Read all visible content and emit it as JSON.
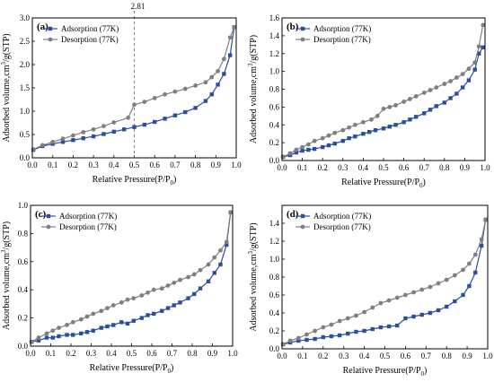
{
  "colors": {
    "adsorption": "#2a4fa0",
    "desorption": "#7f7f7f"
  },
  "chart_data": [
    {
      "type": "line",
      "panel_label": "(a)",
      "xlabel": "Relative Pressure(P/P",
      "xlabel_sub": "0",
      "xlabel_end": ")",
      "ylabel": "Adsorbed volume,cm",
      "ylabel_sup": "3",
      "ylabel_end": "/g(STP)",
      "xlim": [
        0.0,
        1.0
      ],
      "ylim": [
        0.0,
        3.0
      ],
      "xticks": [
        "0.0",
        "0.1",
        "0.2",
        "0.3",
        "0.4",
        "0.5",
        "0.6",
        "0.7",
        "0.8",
        "0.9",
        "1.0"
      ],
      "yticks": [
        "0.0",
        "0.5",
        "1.0",
        "1.5",
        "2.0",
        "2.5",
        "3.0"
      ],
      "legend_position": "top-left",
      "reference_line": {
        "x": 0.5,
        "label": "2.81"
      },
      "series": [
        {
          "name": "Adsorption (77K)",
          "marker": "square",
          "color_key": "adsorption",
          "x": [
            0.005,
            0.05,
            0.1,
            0.15,
            0.2,
            0.25,
            0.3,
            0.35,
            0.4,
            0.45,
            0.5,
            0.55,
            0.6,
            0.65,
            0.7,
            0.75,
            0.8,
            0.85,
            0.88,
            0.91,
            0.94,
            0.97,
            0.99
          ],
          "y": [
            0.17,
            0.25,
            0.3,
            0.34,
            0.38,
            0.42,
            0.46,
            0.51,
            0.56,
            0.61,
            0.66,
            0.71,
            0.77,
            0.84,
            0.91,
            0.98,
            1.07,
            1.22,
            1.36,
            1.57,
            1.8,
            2.2,
            2.8
          ]
        },
        {
          "name": "Desorption (77K)",
          "marker": "circle",
          "color_key": "desorption",
          "x": [
            0.99,
            0.97,
            0.94,
            0.91,
            0.88,
            0.85,
            0.8,
            0.75,
            0.7,
            0.65,
            0.6,
            0.55,
            0.5,
            0.47,
            0.4,
            0.35,
            0.3,
            0.25,
            0.2,
            0.15,
            0.1,
            0.05,
            0.005
          ],
          "y": [
            2.8,
            2.58,
            2.12,
            1.86,
            1.73,
            1.62,
            1.55,
            1.48,
            1.42,
            1.36,
            1.28,
            1.2,
            1.14,
            0.86,
            0.76,
            0.68,
            0.61,
            0.55,
            0.48,
            0.41,
            0.34,
            0.27,
            0.18
          ]
        }
      ]
    },
    {
      "type": "line",
      "panel_label": "(b)",
      "xlabel": "Relative Pressure(P/P",
      "xlabel_sub": "0",
      "xlabel_end": ")",
      "ylabel": "Adsorbed volume,cm",
      "ylabel_sup": "3",
      "ylabel_end": "/g(STP)",
      "xlim": [
        0.0,
        1.0
      ],
      "ylim": [
        0.0,
        1.6
      ],
      "xticks": [
        "0.0",
        "0.1",
        "0.2",
        "0.3",
        "0.4",
        "0.5",
        "0.6",
        "0.7",
        "0.8",
        "0.9",
        "1.0"
      ],
      "yticks": [
        "0.0",
        "0.2",
        "0.4",
        "0.6",
        "0.8",
        "1.0",
        "1.2",
        "1.4",
        "1.6"
      ],
      "legend_position": "top-left",
      "series": [
        {
          "name": "Adsorption (77K)",
          "marker": "square",
          "color_key": "adsorption",
          "x": [
            0.005,
            0.04,
            0.07,
            0.1,
            0.13,
            0.16,
            0.2,
            0.23,
            0.26,
            0.3,
            0.33,
            0.36,
            0.4,
            0.43,
            0.46,
            0.5,
            0.53,
            0.56,
            0.6,
            0.63,
            0.66,
            0.7,
            0.73,
            0.76,
            0.8,
            0.83,
            0.86,
            0.89,
            0.92,
            0.95,
            0.97,
            0.99
          ],
          "y": [
            0.04,
            0.06,
            0.09,
            0.11,
            0.12,
            0.13,
            0.15,
            0.17,
            0.19,
            0.22,
            0.25,
            0.27,
            0.3,
            0.32,
            0.34,
            0.36,
            0.38,
            0.4,
            0.43,
            0.46,
            0.49,
            0.53,
            0.57,
            0.61,
            0.65,
            0.7,
            0.75,
            0.82,
            0.9,
            1.02,
            1.2,
            1.27
          ]
        },
        {
          "name": "Desorption (77K)",
          "marker": "circle",
          "color_key": "desorption",
          "x": [
            0.99,
            0.97,
            0.95,
            0.92,
            0.89,
            0.86,
            0.83,
            0.8,
            0.76,
            0.73,
            0.7,
            0.66,
            0.63,
            0.6,
            0.56,
            0.53,
            0.5,
            0.47,
            0.44,
            0.4,
            0.36,
            0.33,
            0.3,
            0.26,
            0.23,
            0.2,
            0.16,
            0.13,
            0.1,
            0.07,
            0.04,
            0.005
          ],
          "y": [
            1.52,
            1.28,
            1.1,
            1.03,
            0.97,
            0.93,
            0.89,
            0.86,
            0.82,
            0.79,
            0.76,
            0.72,
            0.69,
            0.66,
            0.62,
            0.6,
            0.58,
            0.5,
            0.46,
            0.43,
            0.4,
            0.37,
            0.34,
            0.31,
            0.28,
            0.25,
            0.22,
            0.18,
            0.15,
            0.12,
            0.08,
            0.04
          ]
        }
      ]
    },
    {
      "type": "line",
      "panel_label": "(c)",
      "xlabel": "Relative Pressure(P/P",
      "xlabel_sub": "0",
      "xlabel_end": ")",
      "ylabel": "Adsorbed volume,cm",
      "ylabel_sup": "3",
      "ylabel_end": "/g(STP)",
      "xlim": [
        0.0,
        1.0
      ],
      "ylim": [
        0.0,
        1.0
      ],
      "xticks": [
        "0.0",
        "0.1",
        "0.2",
        "0.3",
        "0.4",
        "0.5",
        "0.6",
        "0.7",
        "0.8",
        "0.9",
        "1.0"
      ],
      "yticks": [
        "0.0",
        "0.2",
        "0.4",
        "0.6",
        "0.8",
        "1.0"
      ],
      "legend_position": "top-left",
      "series": [
        {
          "name": "Adsorption (77K)",
          "marker": "square",
          "color_key": "adsorption",
          "x": [
            0.005,
            0.04,
            0.08,
            0.11,
            0.14,
            0.18,
            0.21,
            0.25,
            0.28,
            0.31,
            0.35,
            0.38,
            0.41,
            0.45,
            0.48,
            0.51,
            0.55,
            0.58,
            0.61,
            0.65,
            0.68,
            0.71,
            0.74,
            0.78,
            0.81,
            0.84,
            0.88,
            0.91,
            0.94,
            0.97,
            0.99
          ],
          "y": [
            0.03,
            0.04,
            0.06,
            0.06,
            0.07,
            0.08,
            0.08,
            0.09,
            0.1,
            0.11,
            0.13,
            0.14,
            0.15,
            0.17,
            0.16,
            0.18,
            0.2,
            0.22,
            0.23,
            0.25,
            0.27,
            0.29,
            0.31,
            0.34,
            0.37,
            0.41,
            0.46,
            0.52,
            0.58,
            0.72,
            0.95
          ]
        },
        {
          "name": "Desorption (77K)",
          "marker": "circle",
          "color_key": "desorption",
          "x": [
            0.99,
            0.97,
            0.94,
            0.91,
            0.88,
            0.84,
            0.81,
            0.78,
            0.74,
            0.71,
            0.68,
            0.65,
            0.61,
            0.58,
            0.55,
            0.51,
            0.48,
            0.45,
            0.41,
            0.38,
            0.35,
            0.31,
            0.28,
            0.25,
            0.21,
            0.18,
            0.14,
            0.11,
            0.08,
            0.04,
            0.005
          ],
          "y": [
            0.95,
            0.74,
            0.68,
            0.63,
            0.58,
            0.54,
            0.51,
            0.49,
            0.47,
            0.45,
            0.43,
            0.41,
            0.4,
            0.38,
            0.36,
            0.34,
            0.33,
            0.31,
            0.29,
            0.27,
            0.25,
            0.23,
            0.21,
            0.19,
            0.17,
            0.15,
            0.13,
            0.11,
            0.09,
            0.06,
            0.03
          ]
        }
      ]
    },
    {
      "type": "line",
      "panel_label": "(d)",
      "xlabel": "Relative Pressure(P/P",
      "xlabel_sub": "0",
      "xlabel_end": ")",
      "ylabel": "Adsorbed volume,cm",
      "ylabel_sup": "3",
      "ylabel_end": "/g(STP)",
      "xlim": [
        0.0,
        1.0
      ],
      "ylim": [
        0.0,
        1.6
      ],
      "xticks": [
        "0.0",
        "0.1",
        "0.2",
        "0.3",
        "0.4",
        "0.5",
        "0.6",
        "0.7",
        "0.8",
        "0.9",
        "1.0"
      ],
      "yticks": [
        "0.0",
        "0.2",
        "0.4",
        "0.6",
        "0.8",
        "1.0",
        "1.2",
        "1.4"
      ],
      "legend_position": "top-left",
      "series": [
        {
          "name": "Adsorption (77K)",
          "marker": "square",
          "color_key": "adsorption",
          "x": [
            0.005,
            0.04,
            0.08,
            0.12,
            0.16,
            0.2,
            0.24,
            0.28,
            0.32,
            0.36,
            0.4,
            0.44,
            0.48,
            0.52,
            0.56,
            0.6,
            0.64,
            0.68,
            0.72,
            0.76,
            0.8,
            0.84,
            0.88,
            0.91,
            0.94,
            0.97,
            0.99
          ],
          "y": [
            0.05,
            0.07,
            0.09,
            0.1,
            0.11,
            0.13,
            0.14,
            0.15,
            0.17,
            0.19,
            0.2,
            0.22,
            0.24,
            0.25,
            0.26,
            0.34,
            0.36,
            0.38,
            0.4,
            0.43,
            0.47,
            0.53,
            0.6,
            0.7,
            0.85,
            1.15,
            1.44
          ]
        },
        {
          "name": "Desorption (77K)",
          "marker": "circle",
          "color_key": "desorption",
          "x": [
            0.99,
            0.97,
            0.94,
            0.91,
            0.88,
            0.84,
            0.8,
            0.76,
            0.72,
            0.68,
            0.64,
            0.6,
            0.56,
            0.52,
            0.48,
            0.44,
            0.4,
            0.36,
            0.32,
            0.28,
            0.24,
            0.2,
            0.16,
            0.12,
            0.08,
            0.04,
            0.005
          ],
          "y": [
            1.44,
            1.22,
            1.05,
            0.95,
            0.88,
            0.82,
            0.77,
            0.73,
            0.69,
            0.66,
            0.63,
            0.6,
            0.57,
            0.54,
            0.51,
            0.46,
            0.41,
            0.37,
            0.34,
            0.31,
            0.27,
            0.24,
            0.2,
            0.16,
            0.12,
            0.09,
            0.05
          ]
        }
      ]
    }
  ]
}
